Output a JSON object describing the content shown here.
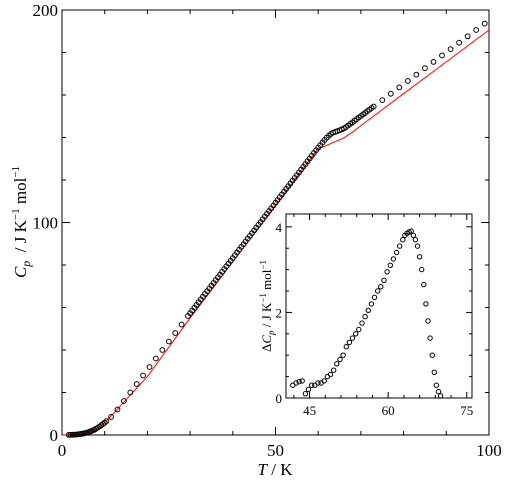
{
  "chart_data": [
    {
      "type": "scatter",
      "title": "",
      "xlabel": {
        "italic": "T",
        "unit": " / K"
      },
      "ylabel": {
        "italic": "C",
        "sub": "p",
        "unit_a": "  / J K",
        "sup_a": "−1",
        "unit_b": " mol",
        "sup_b": "−1"
      },
      "xlim": [
        0,
        100
      ],
      "ylim": [
        0,
        200
      ],
      "xticks": [
        {
          "value": 0,
          "label": "0"
        },
        {
          "value": 50,
          "label": "50"
        },
        {
          "value": 100,
          "label": "100"
        }
      ],
      "yticks": [
        {
          "value": 0,
          "label": "0"
        },
        {
          "value": 100,
          "label": "100"
        },
        {
          "value": 200,
          "label": "200"
        }
      ],
      "grid": false,
      "fit_line_color": "#ff0000",
      "marker_color": "#000000",
      "series": [
        {
          "kind": "markers",
          "x": [
            1.6,
            2.0,
            2.4,
            2.8,
            3.2,
            3.6,
            4.0,
            4.4,
            4.8,
            5.2,
            5.6,
            6.0,
            6.4,
            6.8,
            7.2,
            7.6,
            8.0,
            8.4,
            8.8,
            9.2,
            9.6,
            10.0,
            10.4,
            11.5,
            13.0,
            14.5,
            16.0,
            17.5,
            19.0,
            20.5,
            22.0,
            23.5,
            25.0,
            26.5,
            28.0,
            29.5,
            30.0,
            30.5,
            31.0,
            31.5,
            32.0,
            32.5,
            33.0,
            33.5,
            34.0,
            34.5,
            35.0,
            35.5,
            36.0,
            36.5,
            37.0,
            37.5,
            38.0,
            38.5,
            39.0,
            39.5,
            40.0,
            40.5,
            41.0,
            41.5,
            42.0,
            42.5,
            43.0,
            43.5,
            44.0,
            44.5,
            45.0,
            45.5,
            46.0,
            46.5,
            47.0,
            47.5,
            48.0,
            48.5,
            49.0,
            49.5,
            50.0,
            50.5,
            51.0,
            51.5,
            52.0,
            52.5,
            53.0,
            53.5,
            54.0,
            54.5,
            55.0,
            55.5,
            56.0,
            56.5,
            57.0,
            57.5,
            58.0,
            58.5,
            59.0,
            59.5,
            60.0,
            60.5,
            61.0,
            61.5,
            62.0,
            62.5,
            63.0,
            63.5,
            64.0,
            64.5,
            65.0,
            65.5,
            66.0,
            66.5,
            67.0,
            67.5,
            68.0,
            68.5,
            69.0,
            69.5,
            70.0,
            70.5,
            71.0,
            71.5,
            72.0,
            72.5,
            73.0,
            75.0,
            77.0,
            79.0,
            81.0,
            83.0,
            85.0,
            87.0,
            89.0,
            91.0,
            93.0,
            95.0,
            97.0,
            99.0
          ],
          "y": [
            0.1,
            0.1,
            0.1,
            0.2,
            0.2,
            0.3,
            0.4,
            0.5,
            0.6,
            0.8,
            1.0,
            1.2,
            1.5,
            1.8,
            2.1,
            2.5,
            3.0,
            3.5,
            4.0,
            4.6,
            5.2,
            5.8,
            6.5,
            8.5,
            12.0,
            16.0,
            20.0,
            24.0,
            28.0,
            32.0,
            36.0,
            40.0,
            44.0,
            48.0,
            52.0,
            56.0,
            57.3,
            58.6,
            59.9,
            61.2,
            62.5,
            63.8,
            65.1,
            66.4,
            67.7,
            69.0,
            70.3,
            71.6,
            72.9,
            74.2,
            75.5,
            76.8,
            78.1,
            79.4,
            80.7,
            82.0,
            83.3,
            84.6,
            85.9,
            87.2,
            88.5,
            89.8,
            91.1,
            92.4,
            93.7,
            95.0,
            96.3,
            97.6,
            98.9,
            100.2,
            101.5,
            102.8,
            104.1,
            105.4,
            106.7,
            108.0,
            109.3,
            110.6,
            111.9,
            113.2,
            114.5,
            115.8,
            117.1,
            118.4,
            119.7,
            121.0,
            122.3,
            123.6,
            124.9,
            126.2,
            127.5,
            128.8,
            130.1,
            131.4,
            132.7,
            134.0,
            135.2,
            136.4,
            137.6,
            138.8,
            139.9,
            140.9,
            141.7,
            142.3,
            142.7,
            143.0,
            143.4,
            143.8,
            144.3,
            144.9,
            145.6,
            146.4,
            147.1,
            147.9,
            148.6,
            149.4,
            150.1,
            150.9,
            151.6,
            152.4,
            153.1,
            153.9,
            154.6,
            157.6,
            160.6,
            163.6,
            166.6,
            169.6,
            172.6,
            175.6,
            178.6,
            181.6,
            184.6,
            187.6,
            190.6,
            193.6
          ]
        },
        {
          "kind": "fit",
          "x": [
            0,
            4,
            7,
            8,
            9,
            10,
            12,
            15,
            20,
            30,
            40,
            50,
            60,
            66,
            68,
            70,
            80,
            90,
            100
          ],
          "y": [
            0,
            0.3,
            1.3,
            2.4,
            4.0,
            5.8,
            10.0,
            16.6,
            27.5,
            55.0,
            81.5,
            108.0,
            134.6,
            139.8,
            142.5,
            145.6,
            160.6,
            175.6,
            190.6
          ]
        }
      ]
    },
    {
      "type": "scatter",
      "title": "",
      "xlabel": "",
      "ylabel": {
        "prefix": "Δ",
        "italic": "C",
        "sub": "p",
        "unit_a": " / J K",
        "sup_a": "−1",
        "unit_b": " mol",
        "sup_b": "−1"
      },
      "xlim": [
        40.5,
        76
      ],
      "ylim": [
        0,
        4.3
      ],
      "xticks": [
        {
          "value": 45,
          "label": "45"
        },
        {
          "value": 60,
          "label": "60"
        },
        {
          "value": 75,
          "label": "75"
        }
      ],
      "yticks": [
        {
          "value": 0,
          "label": "0"
        },
        {
          "value": 2,
          "label": "2"
        },
        {
          "value": 4,
          "label": "4"
        }
      ],
      "grid": false,
      "legend": "none",
      "series": [
        {
          "kind": "markers",
          "x": [
            41.8,
            42.4,
            43.0,
            43.6,
            44.2,
            44.8,
            45.4,
            46.0,
            46.6,
            47.2,
            47.8,
            48.4,
            49.0,
            49.6,
            50.2,
            50.8,
            51.4,
            52.0,
            52.6,
            53.2,
            53.8,
            54.4,
            55.0,
            55.6,
            56.2,
            56.8,
            57.4,
            58.0,
            58.6,
            59.2,
            59.8,
            60.4,
            61.0,
            61.6,
            62.2,
            62.8,
            63.2,
            63.6,
            64.0,
            64.4,
            64.8,
            65.2,
            65.6,
            66.0,
            66.4,
            66.8,
            67.2,
            67.6,
            68.0,
            68.4,
            68.8,
            69.2,
            69.6,
            70.0
          ],
          "y": [
            0.3,
            0.35,
            0.38,
            0.4,
            0.1,
            0.2,
            0.3,
            0.3,
            0.35,
            0.35,
            0.4,
            0.5,
            0.55,
            0.65,
            0.8,
            0.9,
            1.0,
            1.2,
            1.3,
            1.4,
            1.5,
            1.6,
            1.75,
            1.9,
            2.05,
            2.2,
            2.35,
            2.5,
            2.6,
            2.75,
            2.95,
            3.1,
            3.25,
            3.4,
            3.55,
            3.7,
            3.8,
            3.85,
            3.88,
            3.9,
            3.8,
            3.7,
            3.55,
            3.3,
            3.0,
            2.65,
            2.2,
            1.8,
            1.4,
            1.0,
            0.6,
            0.3,
            0.15,
            0.05
          ]
        }
      ]
    }
  ]
}
